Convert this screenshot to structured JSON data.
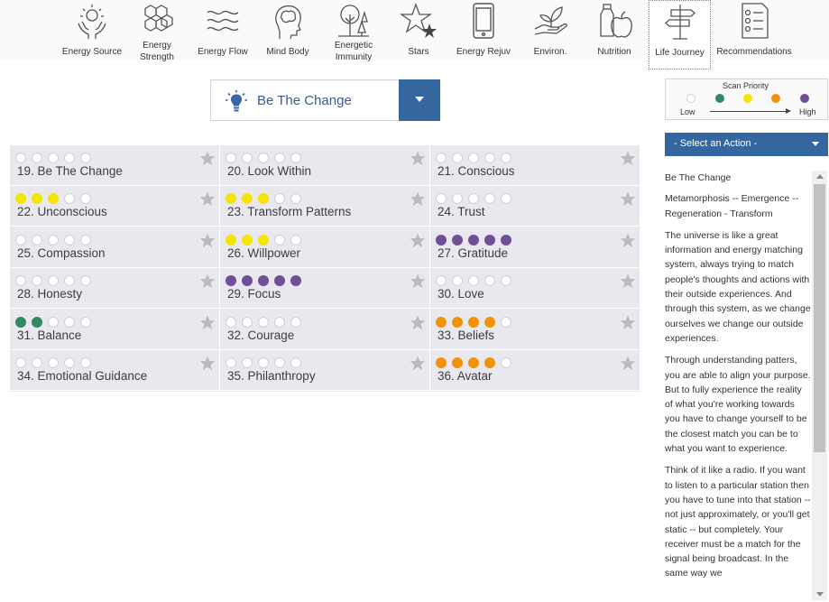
{
  "nav": {
    "items": [
      {
        "label": "Energy Source",
        "icon": "hands-sun-icon"
      },
      {
        "label": "Energy Strength",
        "icon": "hexagons-icon"
      },
      {
        "label": "Energy Flow",
        "icon": "waves-icon"
      },
      {
        "label": "Mind Body",
        "icon": "head-brain-icon"
      },
      {
        "label": "Energetic Immunity",
        "icon": "tree-icon"
      },
      {
        "label": "Stars",
        "icon": "stars-icon"
      },
      {
        "label": "Energy Rejuv",
        "icon": "phone-icon"
      },
      {
        "label": "Environ.",
        "icon": "hand-plant-icon"
      },
      {
        "label": "Nutrition",
        "icon": "fruit-icon"
      },
      {
        "label": "Life Journey",
        "icon": "signpost-icon",
        "active": true
      },
      {
        "label": "Recommendations",
        "icon": "checklist-icon"
      }
    ]
  },
  "selector": {
    "label": "Be The Change",
    "icon": "lightbulb-icon"
  },
  "priority_colors": {
    "none": "#ffffff",
    "green": "#2f8a63",
    "yellow": "#f4e600",
    "orange": "#f0930a",
    "purple": "#6f4f95"
  },
  "grid": {
    "cells": [
      {
        "label": "19. Be The Change",
        "filled": 0,
        "color": "none"
      },
      {
        "label": "20. Look Within",
        "filled": 0,
        "color": "none"
      },
      {
        "label": "21. Conscious",
        "filled": 0,
        "color": "none"
      },
      {
        "label": "22. Unconscious",
        "filled": 3,
        "color": "yellow"
      },
      {
        "label": "23. Transform Patterns",
        "filled": 3,
        "color": "yellow"
      },
      {
        "label": "24. Trust",
        "filled": 0,
        "color": "none"
      },
      {
        "label": "25. Compassion",
        "filled": 0,
        "color": "none"
      },
      {
        "label": "26. Willpower",
        "filled": 3,
        "color": "yellow"
      },
      {
        "label": "27. Gratitude",
        "filled": 5,
        "color": "purple"
      },
      {
        "label": "28. Honesty",
        "filled": 0,
        "color": "none"
      },
      {
        "label": "29. Focus",
        "filled": 5,
        "color": "purple"
      },
      {
        "label": "30. Love",
        "filled": 0,
        "color": "none"
      },
      {
        "label": "31. Balance",
        "filled": 2,
        "color": "green"
      },
      {
        "label": "32. Courage",
        "filled": 0,
        "color": "none"
      },
      {
        "label": "33. Beliefs",
        "filled": 4,
        "color": "orange"
      },
      {
        "label": "34. Emotional Guidance",
        "filled": 0,
        "color": "none"
      },
      {
        "label": "35. Philanthropy",
        "filled": 0,
        "color": "none"
      },
      {
        "label": "36. Avatar",
        "filled": 4,
        "color": "orange"
      }
    ]
  },
  "legend": {
    "title": "Scan Priority",
    "low": "Low",
    "high": "High"
  },
  "action": {
    "label": "- Select an Action -"
  },
  "info": {
    "title": "Be The Change",
    "subtitle": "Metamorphosis -- Emergence -- Regeneration - Transform",
    "p1": "The universe is like a great information and energy matching system, always trying to match people's thoughts and actions with their outside experiences. And through this system, as we change ourselves we change our outside experiences.",
    "p2": "Through understanding patters, you are able to align your purpose. But to fully experience the reality of what you're working towards you have to change yourself to be the closest match you can be to what you want to experience.",
    "p3": "Think of it like a radio. If you want to listen to a particular station then you have to tune into that station -- not just approximately, or you'll get static -- but completely. Your receiver must be a match for the signal being broadcast. In the same way we"
  }
}
